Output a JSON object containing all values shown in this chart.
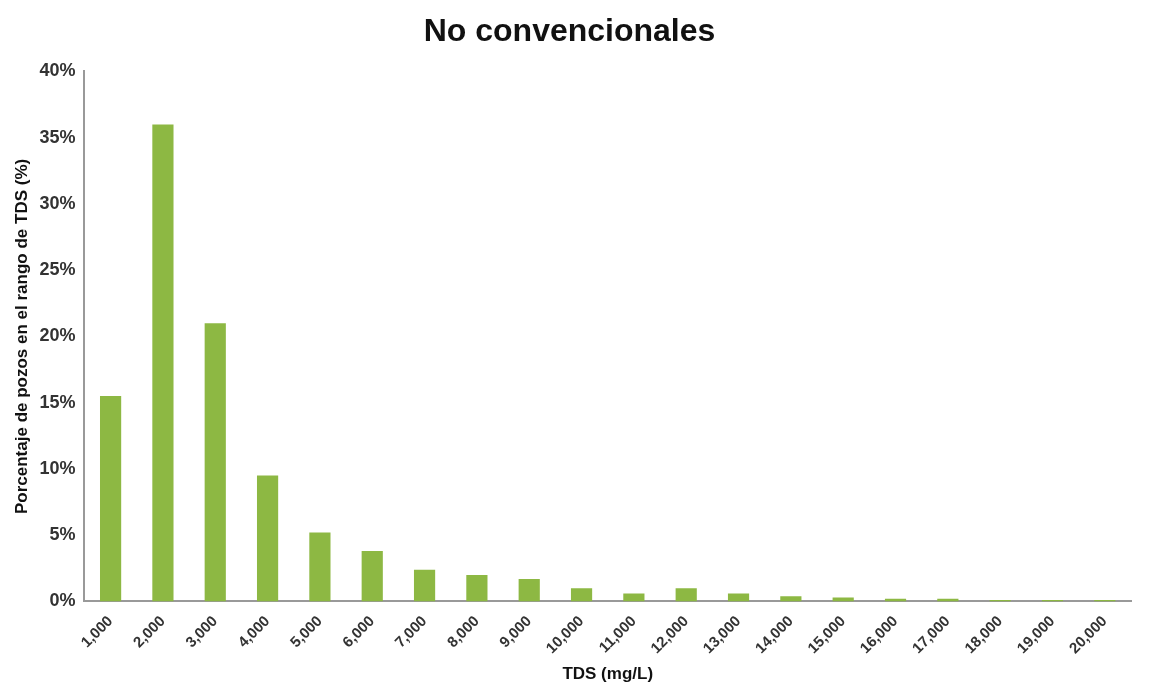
{
  "chart_data": {
    "type": "bar",
    "title": "No convencionales",
    "xlabel": "TDS (mg/L)",
    "ylabel": "Porcentaje de pozos en el rango de TDS (%)",
    "categories": [
      "1,000",
      "2,000",
      "3,000",
      "4,000",
      "5,000",
      "6,000",
      "7,000",
      "8,000",
      "9,000",
      "10,000",
      "11,000",
      "12,000",
      "13,000",
      "14,000",
      "15,000",
      "16,000",
      "17,000",
      "18,000",
      "19,000",
      "20,000"
    ],
    "values": [
      15.5,
      36,
      21,
      9.5,
      5.2,
      3.8,
      2.4,
      2.0,
      1.7,
      1.0,
      0.6,
      1.0,
      0.6,
      0.4,
      0.3,
      0.2,
      0.2,
      0.1,
      0.1,
      0.1
    ],
    "color": "#8db843",
    "ylim": [
      0,
      40
    ],
    "yticks": [
      {
        "value": 0,
        "label": "0%"
      },
      {
        "value": 5,
        "label": "5%"
      },
      {
        "value": 10,
        "label": "10%"
      },
      {
        "value": 15,
        "label": "15%"
      },
      {
        "value": 20,
        "label": "20%"
      },
      {
        "value": 25,
        "label": "25%"
      },
      {
        "value": 30,
        "label": "30%"
      },
      {
        "value": 35,
        "label": "35%"
      },
      {
        "value": 40,
        "label": "40%"
      }
    ],
    "grid": false,
    "legend": false
  }
}
